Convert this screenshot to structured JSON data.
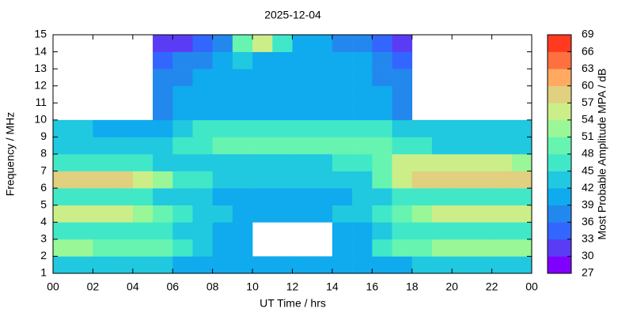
{
  "chart_data": {
    "type": "heatmap",
    "title": "2025-12-04",
    "xlabel": "UT Time / hrs",
    "ylabel": "Frequency / MHz",
    "clabel": "Most Probable Amplitude MPA / dB",
    "xlim": [
      0,
      24
    ],
    "xticks": [
      {
        "value": 0,
        "label": "00"
      },
      {
        "value": 2,
        "label": "02"
      },
      {
        "value": 4,
        "label": "04"
      },
      {
        "value": 6,
        "label": "06"
      },
      {
        "value": 8,
        "label": "08"
      },
      10,
      12,
      14,
      16,
      18,
      20,
      22,
      {
        "value": 24,
        "label": "00"
      }
    ],
    "ylim": [
      1,
      15
    ],
    "yticks": [
      1,
      2,
      3,
      4,
      5,
      6,
      7,
      8,
      9,
      10,
      11,
      12,
      13,
      14,
      15
    ],
    "clim": [
      27,
      69
    ],
    "cticks": [
      27,
      30,
      33,
      36,
      39,
      42,
      45,
      48,
      51,
      54,
      57,
      60,
      63,
      66,
      69
    ],
    "colorscale": [
      "#8000ff",
      "#5a3cf5",
      "#3366ff",
      "#2288ee",
      "#10aaee",
      "#20c8e0",
      "#40e8c8",
      "#66f4b0",
      "#99f797",
      "#ccee88",
      "#e0d080",
      "#ffaa60",
      "#ff7040",
      "#ff3a20",
      "#ff0000"
    ],
    "x": [
      0,
      1,
      2,
      3,
      4,
      5,
      6,
      7,
      8,
      9,
      10,
      11,
      12,
      13,
      14,
      15,
      16,
      17,
      18,
      19,
      20,
      21,
      22,
      23
    ],
    "y": [
      1,
      2,
      3,
      4,
      5,
      6,
      7,
      8,
      9,
      10,
      11,
      12,
      13,
      14
    ],
    "z": [
      [
        42,
        42,
        42,
        42,
        42,
        42,
        41,
        41,
        40,
        40,
        40,
        40,
        40,
        40,
        40,
        40,
        41,
        41,
        42,
        42,
        42,
        42,
        42,
        42
      ],
      [
        51,
        51,
        50,
        50,
        49,
        48,
        45,
        44,
        41,
        40,
        null,
        null,
        null,
        null,
        40,
        41,
        45,
        48,
        50,
        51,
        51,
        51,
        51,
        51
      ],
      [
        47,
        47,
        47,
        47,
        46,
        46,
        44,
        43,
        41,
        41,
        null,
        null,
        null,
        null,
        41,
        41,
        44,
        47,
        47,
        47,
        47,
        47,
        47,
        47
      ],
      [
        54,
        54,
        54,
        54,
        53,
        50,
        45,
        44,
        42,
        41,
        41,
        40,
        40,
        41,
        42,
        42,
        45,
        50,
        53,
        54,
        54,
        54,
        54,
        54
      ],
      [
        45,
        45,
        45,
        45,
        45,
        44,
        43,
        42,
        41,
        41,
        41,
        41,
        41,
        41,
        41,
        42,
        43,
        45,
        45,
        45,
        45,
        45,
        45,
        45
      ],
      [
        57,
        57,
        57,
        57,
        56,
        53,
        47,
        45,
        43,
        42,
        42,
        42,
        42,
        42,
        43,
        44,
        48,
        56,
        57,
        57,
        57,
        57,
        57,
        57
      ],
      [
        46,
        46,
        45,
        45,
        45,
        44,
        44,
        44,
        44,
        44,
        44,
        44,
        44,
        44,
        45,
        46,
        48,
        54,
        55,
        55,
        55,
        55,
        54,
        53
      ],
      [
        44,
        44,
        43,
        43,
        43,
        43,
        46,
        47,
        48,
        48,
        48,
        48,
        48,
        49,
        50,
        50,
        49,
        46,
        45,
        44,
        44,
        44,
        44,
        44
      ],
      [
        42,
        42,
        41,
        41,
        41,
        41,
        44,
        45,
        46,
        46,
        46,
        46,
        46,
        46,
        47,
        47,
        46,
        43,
        42,
        42,
        42,
        42,
        42,
        42
      ],
      [
        null,
        null,
        null,
        null,
        null,
        38,
        39,
        40,
        40,
        40,
        40,
        40,
        40,
        40,
        40,
        40,
        40,
        38,
        null,
        null,
        null,
        null,
        null,
        null
      ],
      [
        null,
        null,
        null,
        null,
        null,
        38,
        39,
        39,
        39,
        39,
        39,
        39,
        39,
        39,
        39,
        39,
        39,
        38,
        null,
        null,
        null,
        null,
        null,
        null
      ],
      [
        null,
        null,
        null,
        null,
        null,
        37,
        38,
        39,
        40,
        39,
        39,
        39,
        39,
        39,
        40,
        39,
        38,
        37,
        null,
        null,
        null,
        null,
        null,
        null
      ],
      [
        null,
        null,
        null,
        null,
        null,
        34,
        36,
        38,
        40,
        42,
        40,
        39,
        39,
        40,
        41,
        39,
        37,
        34,
        null,
        null,
        null,
        null,
        null,
        null
      ],
      [
        null,
        null,
        null,
        null,
        null,
        30,
        32,
        34,
        36,
        50,
        55,
        45,
        40,
        40,
        38,
        36,
        33,
        30,
        null,
        null,
        null,
        null,
        null,
        null
      ]
    ]
  }
}
